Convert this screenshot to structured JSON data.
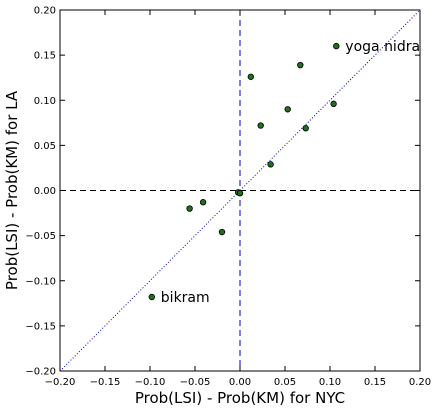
{
  "chart_data": {
    "type": "scatter",
    "title": "",
    "xlabel": "Prob(LSI) - Prob(KM) for NYC",
    "ylabel": "Prob(LSI) - Prob(KM) for LA",
    "xlim": [
      -0.2,
      0.2
    ],
    "ylim": [
      -0.2,
      0.2
    ],
    "xticks": [
      "−0.20",
      "−0.15",
      "−0.10",
      "−0.05",
      "0.00",
      "0.05",
      "0.10",
      "0.15",
      "0.20"
    ],
    "yticks": [
      "−0.20",
      "−0.15",
      "−0.10",
      "−0.05",
      "0.00",
      "0.05",
      "0.10",
      "0.15",
      "0.20"
    ],
    "grid": false,
    "reference_lines": {
      "x_zero": "dashed blue",
      "y_zero": "dashed black",
      "diagonal_y_equals_x": "dotted blue"
    },
    "series": [
      {
        "points": [
          {
            "x": 0.107,
            "y": 0.16,
            "label": "yoga nidra"
          },
          {
            "x": 0.067,
            "y": 0.139
          },
          {
            "x": 0.012,
            "y": 0.126
          },
          {
            "x": 0.104,
            "y": 0.096
          },
          {
            "x": 0.053,
            "y": 0.09
          },
          {
            "x": 0.023,
            "y": 0.072
          },
          {
            "x": 0.073,
            "y": 0.069
          },
          {
            "x": 0.034,
            "y": 0.029
          },
          {
            "x": -0.002,
            "y": -0.002
          },
          {
            "x": 0.0,
            "y": -0.003
          },
          {
            "x": -0.041,
            "y": -0.013
          },
          {
            "x": -0.056,
            "y": -0.02
          },
          {
            "x": -0.02,
            "y": -0.046
          },
          {
            "x": -0.098,
            "y": -0.118,
            "label": "bikram"
          }
        ]
      }
    ],
    "colors": {
      "marker_fill": "#1f6f1f",
      "marker_edge": "#000000",
      "x_zero_line": "#0000cc",
      "y_zero_line": "#000000",
      "diagonal": "#0000cc"
    }
  }
}
